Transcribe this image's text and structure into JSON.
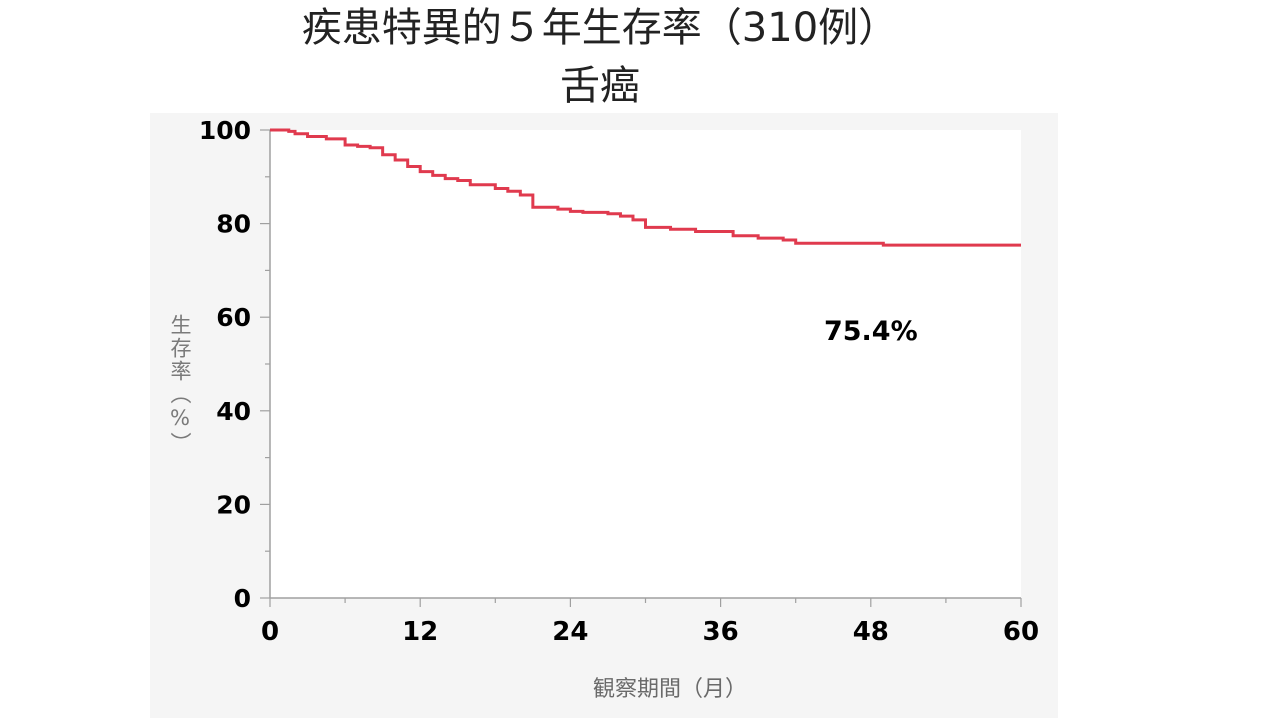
{
  "header": {
    "title_line1": "疾患特異的５年生存率（310例）",
    "title_line2": "舌癌"
  },
  "chart_data": {
    "type": "line",
    "title": "疾患特異的５年生存率（310例） 舌癌",
    "xlabel": "観察期間（月）",
    "ylabel": "生存率（%）",
    "xlim": [
      0,
      60
    ],
    "ylim": [
      0,
      100
    ],
    "x_ticks": [
      0,
      12,
      24,
      36,
      48,
      60
    ],
    "y_ticks": [
      0,
      20,
      40,
      60,
      80,
      100
    ],
    "x_ticks_label": [
      "0",
      "12",
      "24",
      "36",
      "48",
      "60"
    ],
    "y_ticks_label": [
      "0",
      "20",
      "40",
      "60",
      "80",
      "100"
    ],
    "grid": false,
    "line_color": "#e03a4e",
    "series": [
      {
        "step": true,
        "x": [
          0,
          1.5,
          2,
          3,
          4.5,
          6,
          7,
          8,
          9,
          10,
          11,
          12,
          13,
          14,
          15,
          16,
          18,
          19,
          20,
          21,
          23,
          24,
          25,
          27,
          28,
          29,
          30,
          32,
          34,
          37,
          39,
          41,
          42,
          49,
          60
        ],
        "y": [
          100,
          99.7,
          99.2,
          98.6,
          98.1,
          96.8,
          96.5,
          96.2,
          94.7,
          93.6,
          92.2,
          91.1,
          90.3,
          89.6,
          89.2,
          88.3,
          87.5,
          86.9,
          86.1,
          83.5,
          83.1,
          82.6,
          82.4,
          82.1,
          81.6,
          80.8,
          79.2,
          78.8,
          78.3,
          77.4,
          76.9,
          76.5,
          75.8,
          75.4,
          75.4
        ]
      }
    ],
    "annotations": [
      {
        "text": "75.4%",
        "x": 48,
        "y": 57
      }
    ]
  }
}
